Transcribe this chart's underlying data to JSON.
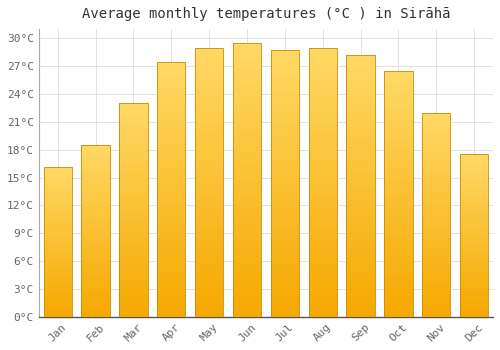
{
  "months": [
    "Jan",
    "Feb",
    "Mar",
    "Apr",
    "May",
    "Jun",
    "Jul",
    "Aug",
    "Sep",
    "Oct",
    "Nov",
    "Dec"
  ],
  "temperatures": [
    16.1,
    18.5,
    23.0,
    27.4,
    29.0,
    29.5,
    28.7,
    29.0,
    28.2,
    26.5,
    22.0,
    17.5
  ],
  "bar_color_bottom": "#F5A800",
  "bar_color_top": "#FFD966",
  "title": "Average monthly temperatures (°C ) in Sirāhā",
  "ylim": [
    0,
    31
  ],
  "yticks": [
    0,
    3,
    6,
    9,
    12,
    15,
    18,
    21,
    24,
    27,
    30
  ],
  "ytick_labels": [
    "0°C",
    "3°C",
    "6°C",
    "9°C",
    "12°C",
    "15°C",
    "18°C",
    "21°C",
    "24°C",
    "27°C",
    "30°C"
  ],
  "background_color": "#FFFFFF",
  "grid_color": "#DDDDDD",
  "title_fontsize": 10,
  "tick_fontsize": 8,
  "bar_edge_color": "#CC8800",
  "bar_width": 0.75,
  "n_grad": 80
}
